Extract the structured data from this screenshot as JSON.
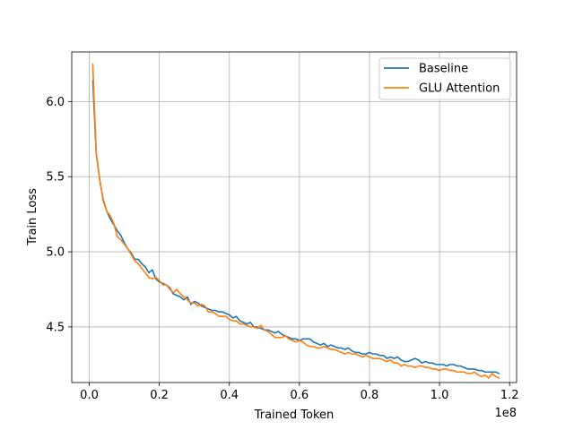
{
  "chart_data": {
    "type": "line",
    "title": "",
    "xlabel": "Trained Token",
    "ylabel": "Train Loss",
    "x_offset_label": "1e8",
    "xlim": [
      -0.05,
      1.22
    ],
    "ylim": [
      4.13,
      6.33
    ],
    "x_ticks": [
      0.0,
      0.2,
      0.4,
      0.6,
      0.8,
      1.0,
      1.2
    ],
    "x_tick_labels": [
      "0.0",
      "0.2",
      "0.4",
      "0.6",
      "0.8",
      "1.0",
      "1.2"
    ],
    "y_ticks": [
      4.5,
      5.0,
      5.5,
      6.0
    ],
    "y_tick_labels": [
      "4.5",
      "5.0",
      "5.5",
      "6.0"
    ],
    "grid": true,
    "legend_position": "top-right",
    "series": [
      {
        "name": "Baseline",
        "color": "#1f77b4",
        "points": [
          [
            0.01,
            6.14
          ],
          [
            0.02,
            5.65
          ],
          [
            0.03,
            5.48
          ],
          [
            0.04,
            5.34
          ],
          [
            0.05,
            5.27
          ],
          [
            0.06,
            5.22
          ],
          [
            0.07,
            5.18
          ],
          [
            0.08,
            5.14
          ],
          [
            0.09,
            5.11
          ],
          [
            0.1,
            5.06
          ],
          [
            0.11,
            5.02
          ],
          [
            0.12,
            4.99
          ],
          [
            0.13,
            4.95
          ],
          [
            0.14,
            4.95
          ],
          [
            0.15,
            4.92
          ],
          [
            0.16,
            4.9
          ],
          [
            0.17,
            4.86
          ],
          [
            0.18,
            4.88
          ],
          [
            0.19,
            4.82
          ],
          [
            0.2,
            4.8
          ],
          [
            0.21,
            4.79
          ],
          [
            0.22,
            4.78
          ],
          [
            0.23,
            4.76
          ],
          [
            0.24,
            4.72
          ],
          [
            0.25,
            4.71
          ],
          [
            0.26,
            4.7
          ],
          [
            0.27,
            4.68
          ],
          [
            0.28,
            4.7
          ],
          [
            0.29,
            4.65
          ],
          [
            0.3,
            4.67
          ],
          [
            0.31,
            4.66
          ],
          [
            0.32,
            4.64
          ],
          [
            0.33,
            4.63
          ],
          [
            0.34,
            4.62
          ],
          [
            0.35,
            4.61
          ],
          [
            0.36,
            4.61
          ],
          [
            0.37,
            4.6
          ],
          [
            0.38,
            4.6
          ],
          [
            0.39,
            4.59
          ],
          [
            0.4,
            4.58
          ],
          [
            0.41,
            4.56
          ],
          [
            0.42,
            4.57
          ],
          [
            0.43,
            4.54
          ],
          [
            0.44,
            4.53
          ],
          [
            0.45,
            4.52
          ],
          [
            0.46,
            4.53
          ],
          [
            0.47,
            4.5
          ],
          [
            0.48,
            4.5
          ],
          [
            0.49,
            4.49
          ],
          [
            0.5,
            4.48
          ],
          [
            0.51,
            4.48
          ],
          [
            0.52,
            4.47
          ],
          [
            0.53,
            4.46
          ],
          [
            0.54,
            4.47
          ],
          [
            0.55,
            4.45
          ],
          [
            0.56,
            4.44
          ],
          [
            0.57,
            4.43
          ],
          [
            0.58,
            4.42
          ],
          [
            0.59,
            4.42
          ],
          [
            0.6,
            4.41
          ],
          [
            0.61,
            4.42
          ],
          [
            0.62,
            4.42
          ],
          [
            0.63,
            4.42
          ],
          [
            0.64,
            4.4
          ],
          [
            0.65,
            4.39
          ],
          [
            0.66,
            4.38
          ],
          [
            0.67,
            4.39
          ],
          [
            0.68,
            4.37
          ],
          [
            0.69,
            4.38
          ],
          [
            0.7,
            4.37
          ],
          [
            0.71,
            4.36
          ],
          [
            0.72,
            4.36
          ],
          [
            0.73,
            4.35
          ],
          [
            0.74,
            4.36
          ],
          [
            0.75,
            4.34
          ],
          [
            0.76,
            4.33
          ],
          [
            0.77,
            4.33
          ],
          [
            0.78,
            4.32
          ],
          [
            0.79,
            4.32
          ],
          [
            0.8,
            4.33
          ],
          [
            0.81,
            4.32
          ],
          [
            0.82,
            4.32
          ],
          [
            0.83,
            4.31
          ],
          [
            0.84,
            4.31
          ],
          [
            0.85,
            4.29
          ],
          [
            0.86,
            4.3
          ],
          [
            0.87,
            4.29
          ],
          [
            0.88,
            4.3
          ],
          [
            0.89,
            4.28
          ],
          [
            0.9,
            4.27
          ],
          [
            0.91,
            4.27
          ],
          [
            0.92,
            4.28
          ],
          [
            0.93,
            4.29
          ],
          [
            0.94,
            4.28
          ],
          [
            0.95,
            4.26
          ],
          [
            0.96,
            4.27
          ],
          [
            0.97,
            4.26
          ],
          [
            0.98,
            4.26
          ],
          [
            0.99,
            4.25
          ],
          [
            1.0,
            4.25
          ],
          [
            1.01,
            4.25
          ],
          [
            1.02,
            4.24
          ],
          [
            1.03,
            4.25
          ],
          [
            1.04,
            4.25
          ],
          [
            1.05,
            4.24
          ],
          [
            1.06,
            4.24
          ],
          [
            1.07,
            4.23
          ],
          [
            1.08,
            4.22
          ],
          [
            1.09,
            4.22
          ],
          [
            1.1,
            4.22
          ],
          [
            1.11,
            4.21
          ],
          [
            1.12,
            4.21
          ],
          [
            1.13,
            4.2
          ],
          [
            1.14,
            4.2
          ],
          [
            1.15,
            4.2
          ],
          [
            1.16,
            4.2
          ],
          [
            1.17,
            4.19
          ]
        ]
      },
      {
        "name": "GLU Attention",
        "color": "#ff7f0e",
        "points": [
          [
            0.01,
            6.25
          ],
          [
            0.02,
            5.66
          ],
          [
            0.03,
            5.47
          ],
          [
            0.04,
            5.35
          ],
          [
            0.05,
            5.27
          ],
          [
            0.06,
            5.24
          ],
          [
            0.07,
            5.19
          ],
          [
            0.08,
            5.1
          ],
          [
            0.09,
            5.08
          ],
          [
            0.1,
            5.05
          ],
          [
            0.11,
            5.02
          ],
          [
            0.12,
            4.98
          ],
          [
            0.13,
            4.94
          ],
          [
            0.14,
            4.92
          ],
          [
            0.15,
            4.89
          ],
          [
            0.16,
            4.86
          ],
          [
            0.17,
            4.83
          ],
          [
            0.18,
            4.82
          ],
          [
            0.19,
            4.83
          ],
          [
            0.2,
            4.81
          ],
          [
            0.21,
            4.78
          ],
          [
            0.22,
            4.78
          ],
          [
            0.23,
            4.75
          ],
          [
            0.24,
            4.73
          ],
          [
            0.25,
            4.75
          ],
          [
            0.26,
            4.72
          ],
          [
            0.27,
            4.7
          ],
          [
            0.28,
            4.68
          ],
          [
            0.29,
            4.66
          ],
          [
            0.3,
            4.66
          ],
          [
            0.31,
            4.64
          ],
          [
            0.32,
            4.65
          ],
          [
            0.33,
            4.64
          ],
          [
            0.34,
            4.6
          ],
          [
            0.35,
            4.6
          ],
          [
            0.36,
            4.59
          ],
          [
            0.37,
            4.57
          ],
          [
            0.38,
            4.57
          ],
          [
            0.39,
            4.57
          ],
          [
            0.4,
            4.55
          ],
          [
            0.41,
            4.54
          ],
          [
            0.42,
            4.54
          ],
          [
            0.43,
            4.52
          ],
          [
            0.44,
            4.52
          ],
          [
            0.45,
            4.51
          ],
          [
            0.46,
            4.5
          ],
          [
            0.47,
            4.5
          ],
          [
            0.48,
            4.49
          ],
          [
            0.49,
            4.51
          ],
          [
            0.5,
            4.48
          ],
          [
            0.51,
            4.47
          ],
          [
            0.52,
            4.45
          ],
          [
            0.53,
            4.43
          ],
          [
            0.54,
            4.43
          ],
          [
            0.55,
            4.43
          ],
          [
            0.56,
            4.44
          ],
          [
            0.57,
            4.42
          ],
          [
            0.58,
            4.41
          ],
          [
            0.59,
            4.4
          ],
          [
            0.6,
            4.41
          ],
          [
            0.61,
            4.4
          ],
          [
            0.62,
            4.38
          ],
          [
            0.63,
            4.37
          ],
          [
            0.64,
            4.37
          ],
          [
            0.65,
            4.36
          ],
          [
            0.66,
            4.36
          ],
          [
            0.67,
            4.37
          ],
          [
            0.68,
            4.36
          ],
          [
            0.69,
            4.35
          ],
          [
            0.7,
            4.35
          ],
          [
            0.71,
            4.34
          ],
          [
            0.72,
            4.33
          ],
          [
            0.73,
            4.32
          ],
          [
            0.74,
            4.33
          ],
          [
            0.75,
            4.32
          ],
          [
            0.76,
            4.32
          ],
          [
            0.77,
            4.31
          ],
          [
            0.78,
            4.3
          ],
          [
            0.79,
            4.31
          ],
          [
            0.8,
            4.3
          ],
          [
            0.81,
            4.29
          ],
          [
            0.82,
            4.29
          ],
          [
            0.83,
            4.29
          ],
          [
            0.84,
            4.28
          ],
          [
            0.85,
            4.27
          ],
          [
            0.86,
            4.28
          ],
          [
            0.87,
            4.26
          ],
          [
            0.88,
            4.26
          ],
          [
            0.89,
            4.24
          ],
          [
            0.9,
            4.25
          ],
          [
            0.91,
            4.24
          ],
          [
            0.92,
            4.24
          ],
          [
            0.93,
            4.23
          ],
          [
            0.94,
            4.24
          ],
          [
            0.95,
            4.24
          ],
          [
            0.96,
            4.23
          ],
          [
            0.97,
            4.23
          ],
          [
            0.98,
            4.22
          ],
          [
            0.99,
            4.22
          ],
          [
            1.0,
            4.21
          ],
          [
            1.01,
            4.22
          ],
          [
            1.02,
            4.22
          ],
          [
            1.03,
            4.21
          ],
          [
            1.04,
            4.21
          ],
          [
            1.05,
            4.2
          ],
          [
            1.06,
            4.2
          ],
          [
            1.07,
            4.2
          ],
          [
            1.08,
            4.19
          ],
          [
            1.09,
            4.19
          ],
          [
            1.1,
            4.2
          ],
          [
            1.11,
            4.18
          ],
          [
            1.12,
            4.17
          ],
          [
            1.13,
            4.18
          ],
          [
            1.14,
            4.16
          ],
          [
            1.15,
            4.19
          ],
          [
            1.16,
            4.17
          ],
          [
            1.17,
            4.16
          ]
        ]
      }
    ]
  }
}
